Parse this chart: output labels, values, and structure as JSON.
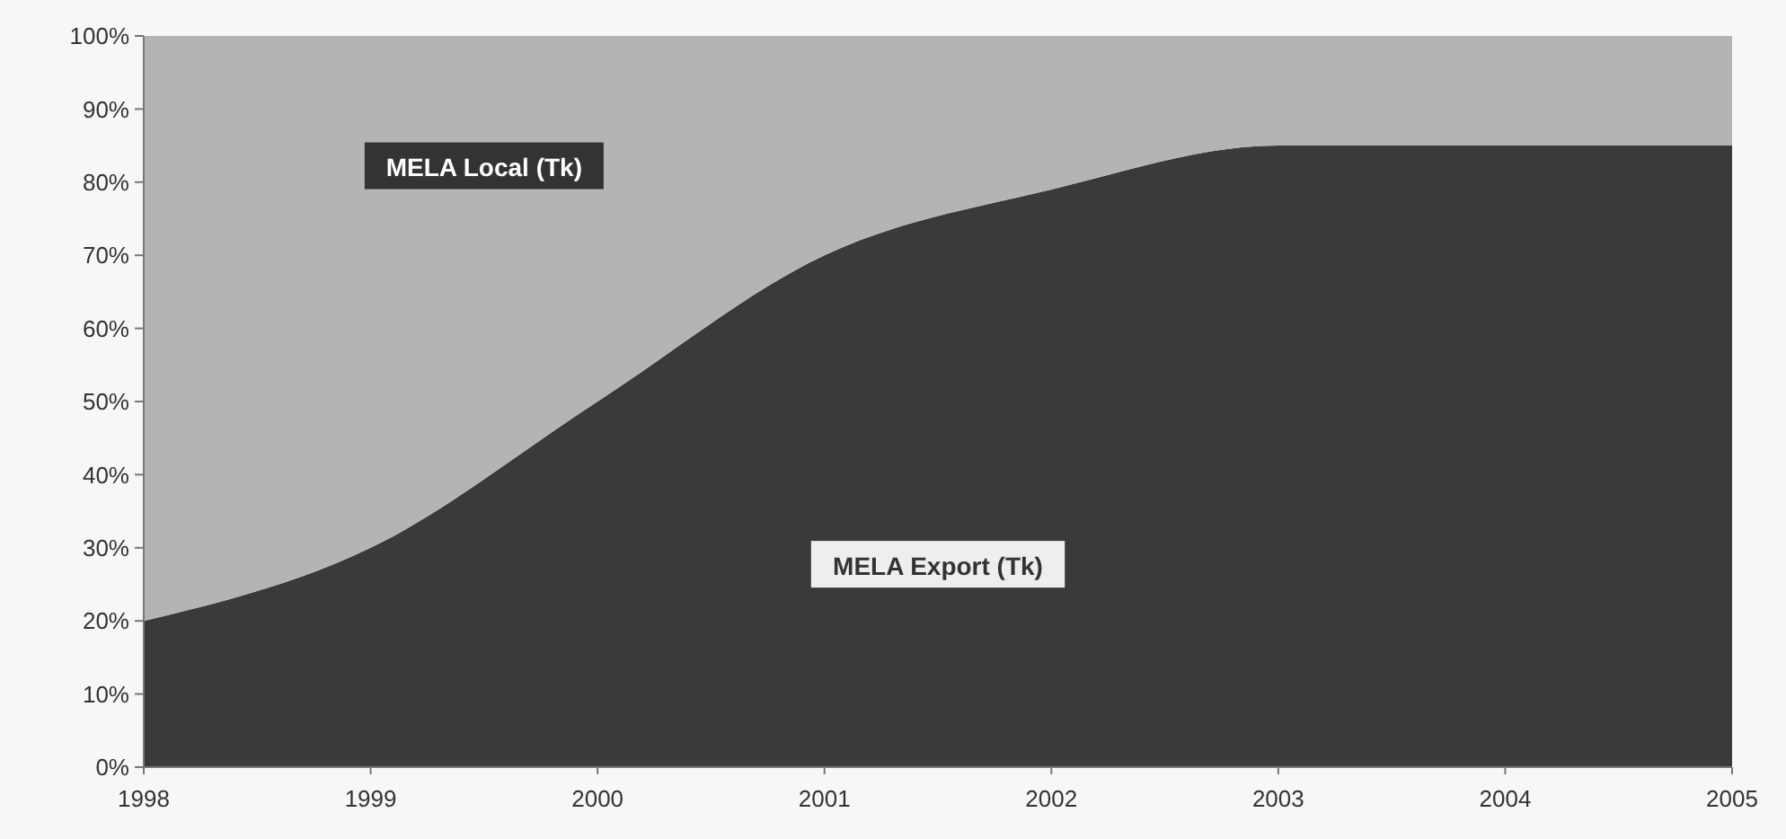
{
  "chart_data": {
    "type": "area",
    "stacked": true,
    "x": [
      1998,
      1999,
      2000,
      2001,
      2002,
      2003,
      2004,
      2005
    ],
    "xlim": [
      1998,
      2005
    ],
    "xticks": [
      1998,
      1999,
      2000,
      2001,
      2002,
      2003,
      2004,
      2005
    ],
    "ylim": [
      0,
      100
    ],
    "yticks": [
      {
        "value": 0,
        "label": "0%"
      },
      {
        "value": 10,
        "label": "10%"
      },
      {
        "value": 20,
        "label": "20%"
      },
      {
        "value": 30,
        "label": "30%"
      },
      {
        "value": 40,
        "label": "40%"
      },
      {
        "value": 50,
        "label": "50%"
      },
      {
        "value": 60,
        "label": "60%"
      },
      {
        "value": 70,
        "label": "70%"
      },
      {
        "value": 80,
        "label": "80%"
      },
      {
        "value": 90,
        "label": "90%"
      },
      {
        "value": 100,
        "label": "100%"
      }
    ],
    "series": [
      {
        "name": "MELA Export (Tk)",
        "color": "#3a3a3a",
        "values": [
          20,
          30,
          50,
          70,
          79,
          85,
          85,
          85
        ]
      },
      {
        "name": "MELA Local (Tk)",
        "color": "#b4b4b4",
        "values": [
          80,
          70,
          50,
          30,
          21,
          15,
          15,
          15
        ]
      }
    ],
    "legend": false,
    "grid": false
  }
}
